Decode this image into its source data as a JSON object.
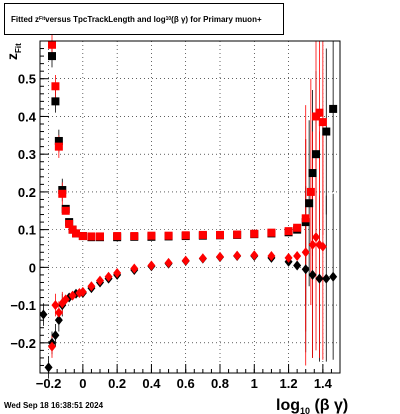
{
  "title": {
    "prefix": "Fitted ",
    "z": "z",
    "z_sub": "Fit",
    "middle": " versus TpcTrackLength and log",
    "log_sub": "10",
    "suffix": " (β  γ) for Primary muon+"
  },
  "timestamp": "Wed Sep 18 16:38:51 2024",
  "chart_data": {
    "type": "scatter",
    "title": "Fitted zFit versus TpcTrackLength and log10(β γ) for Primary muon+",
    "xlabel": "log10(β γ)",
    "ylabel": "zFit",
    "xlim": [
      -0.25,
      1.5
    ],
    "ylim": [
      -0.28,
      0.6
    ],
    "x_ticks": [
      -0.2,
      0,
      0.2,
      0.4,
      0.6,
      0.8,
      1,
      1.2,
      1.4
    ],
    "x_tick_labels": [
      "−0.2",
      "0",
      "0.2",
      "0.4",
      "0.6",
      "0.8",
      "1",
      "1.2",
      "1.4"
    ],
    "y_ticks": [
      -0.2,
      -0.1,
      0,
      0.1,
      0.2,
      0.3,
      0.4,
      0.5
    ],
    "y_tick_labels": [
      "−0.2",
      "−0.1",
      "0",
      "0.1",
      "0.2",
      "0.3",
      "0.4",
      "0.5"
    ],
    "grid": true,
    "series": [
      {
        "color": "#000000",
        "marker": "square",
        "points": [
          [
            -0.18,
            0.56
          ],
          [
            -0.16,
            0.44
          ],
          [
            -0.14,
            0.335
          ],
          [
            -0.12,
            0.205
          ],
          [
            -0.1,
            0.155
          ],
          [
            -0.08,
            0.12
          ],
          [
            -0.06,
            0.1
          ],
          [
            -0.04,
            0.09
          ],
          [
            0.0,
            0.083
          ],
          [
            0.05,
            0.08
          ],
          [
            0.1,
            0.08
          ],
          [
            0.2,
            0.08
          ],
          [
            0.3,
            0.081
          ],
          [
            0.4,
            0.081
          ],
          [
            0.5,
            0.082
          ],
          [
            0.6,
            0.083
          ],
          [
            0.7,
            0.084
          ],
          [
            0.8,
            0.085
          ],
          [
            0.9,
            0.086
          ],
          [
            1.0,
            0.088
          ],
          [
            1.1,
            0.09
          ],
          [
            1.2,
            0.093
          ],
          [
            1.25,
            0.1
          ],
          [
            1.3,
            0.12
          ],
          [
            1.32,
            0.17
          ],
          [
            1.34,
            0.25
          ],
          [
            1.36,
            0.3
          ],
          [
            1.42,
            0.36
          ],
          [
            1.46,
            0.42
          ]
        ]
      },
      {
        "color": "#ff0000",
        "marker": "square",
        "points": [
          [
            -0.18,
            0.59
          ],
          [
            -0.16,
            0.48
          ],
          [
            -0.14,
            0.32
          ],
          [
            -0.12,
            0.195
          ],
          [
            -0.1,
            0.15
          ],
          [
            -0.08,
            0.115
          ],
          [
            -0.06,
            0.1
          ],
          [
            -0.04,
            0.09
          ],
          [
            0.0,
            0.083
          ],
          [
            0.05,
            0.082
          ],
          [
            0.1,
            0.082
          ],
          [
            0.2,
            0.083
          ],
          [
            0.3,
            0.083
          ],
          [
            0.4,
            0.084
          ],
          [
            0.5,
            0.084
          ],
          [
            0.6,
            0.085
          ],
          [
            0.7,
            0.086
          ],
          [
            0.8,
            0.086
          ],
          [
            0.9,
            0.087
          ],
          [
            1.0,
            0.089
          ],
          [
            1.1,
            0.092
          ],
          [
            1.2,
            0.096
          ],
          [
            1.25,
            0.105
          ],
          [
            1.3,
            0.13
          ],
          [
            1.33,
            0.2
          ],
          [
            1.36,
            0.4
          ],
          [
            1.38,
            0.41
          ],
          [
            1.4,
            0.385
          ]
        ]
      },
      {
        "color": "#000000",
        "marker": "diamond",
        "points": [
          [
            -0.23,
            -0.125
          ],
          [
            -0.2,
            -0.265
          ],
          [
            -0.18,
            -0.2
          ],
          [
            -0.16,
            -0.18
          ],
          [
            -0.14,
            -0.14
          ],
          [
            -0.12,
            -0.1
          ],
          [
            -0.08,
            -0.08
          ],
          [
            -0.04,
            -0.07
          ],
          [
            0.0,
            -0.068
          ],
          [
            0.05,
            -0.055
          ],
          [
            0.1,
            -0.04
          ],
          [
            0.15,
            -0.03
          ],
          [
            0.2,
            -0.02
          ],
          [
            0.3,
            -0.007
          ],
          [
            0.4,
            0.003
          ],
          [
            0.5,
            0.01
          ],
          [
            0.6,
            0.017
          ],
          [
            0.7,
            0.023
          ],
          [
            0.8,
            0.027
          ],
          [
            0.9,
            0.03
          ],
          [
            1.0,
            0.03
          ],
          [
            1.1,
            0.025
          ],
          [
            1.2,
            0.015
          ],
          [
            1.25,
            0.005
          ],
          [
            1.3,
            -0.005
          ],
          [
            1.34,
            -0.02
          ],
          [
            1.38,
            -0.03
          ],
          [
            1.42,
            -0.03
          ],
          [
            1.46,
            -0.025
          ]
        ]
      },
      {
        "color": "#ff0000",
        "marker": "diamond",
        "points": [
          [
            -0.18,
            -0.21
          ],
          [
            -0.16,
            -0.1
          ],
          [
            -0.14,
            -0.12
          ],
          [
            -0.12,
            -0.095
          ],
          [
            -0.1,
            -0.085
          ],
          [
            -0.06,
            -0.075
          ],
          [
            -0.02,
            -0.068
          ],
          [
            0.0,
            -0.065
          ],
          [
            0.05,
            -0.05
          ],
          [
            0.1,
            -0.035
          ],
          [
            0.15,
            -0.025
          ],
          [
            0.2,
            -0.015
          ],
          [
            0.3,
            -0.003
          ],
          [
            0.4,
            0.005
          ],
          [
            0.5,
            0.012
          ],
          [
            0.6,
            0.018
          ],
          [
            0.7,
            0.024
          ],
          [
            0.8,
            0.028
          ],
          [
            0.9,
            0.031
          ],
          [
            1.0,
            0.032
          ],
          [
            1.1,
            0.03
          ],
          [
            1.2,
            0.025
          ],
          [
            1.25,
            0.03
          ],
          [
            1.3,
            0.04
          ],
          [
            1.34,
            0.06
          ],
          [
            1.36,
            0.08
          ],
          [
            1.38,
            0.06
          ],
          [
            1.4,
            0.055
          ]
        ]
      }
    ]
  }
}
